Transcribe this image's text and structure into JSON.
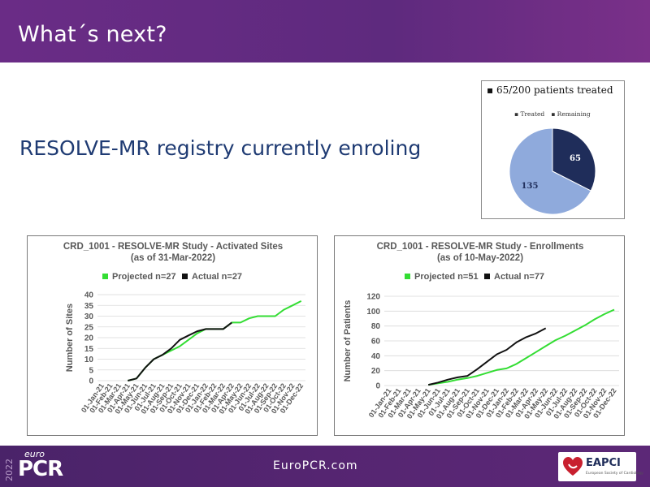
{
  "slide": {
    "title": "What´s next?",
    "subtitle": "RESOLVE-MR registry currently enroling"
  },
  "pie": {
    "title": "▪ 65/200 patients treated",
    "legend": [
      "▪ Treated",
      "▪ Remaining"
    ],
    "colors": [
      "#1f2d5a",
      "#8faadc"
    ],
    "chart_data": {
      "type": "pie",
      "labels": [
        "Treated",
        "Remaining"
      ],
      "values": [
        65,
        135
      ],
      "legend_position": "top"
    }
  },
  "charts": [
    {
      "type": "line",
      "title_line1": "CRD_1001 - RESOLVE-MR Study - Activated Sites",
      "title_line2": "(as of 31-Mar-2022)",
      "ylabel": "Number of Sites",
      "legend": [
        "Projected n=27",
        "Actual n=27"
      ],
      "colors": [
        "#33dd33",
        "#111111"
      ],
      "ylim": [
        0,
        40
      ],
      "yticks": [
        0,
        5,
        10,
        15,
        20,
        25,
        30,
        35,
        40
      ],
      "categories": [
        "01-Jan-21",
        "01-Feb-21",
        "01-Mar-21",
        "01-Apr-21",
        "01-May-21",
        "01-Jun-21",
        "01-Jul-21",
        "01-Aug-21",
        "01-Sep-21",
        "01-Oct-21",
        "01-Nov-21",
        "01-Dec-21",
        "01-Jan-22",
        "01-Feb-22",
        "01-Mar-22",
        "01-Apr-22",
        "01-May-22",
        "01-Jun-22",
        "01-Jul-22",
        "01-Aug-22",
        "01-Sep-22",
        "01-Oct-22",
        "01-Nov-22",
        "01-Dec-22"
      ],
      "series": [
        {
          "name": "Projected n=27",
          "values": [
            null,
            null,
            null,
            0,
            1,
            6,
            10,
            12,
            14,
            16,
            19,
            22,
            24,
            24,
            24,
            27,
            27,
            29,
            30,
            30,
            30,
            33,
            35,
            37
          ]
        },
        {
          "name": "Actual n=27",
          "values": [
            null,
            null,
            null,
            0,
            1,
            6,
            10,
            12,
            15,
            19,
            21,
            23,
            24,
            24,
            24,
            27,
            null,
            null,
            null,
            null,
            null,
            null,
            null,
            null
          ]
        }
      ]
    },
    {
      "type": "line",
      "title_line1": "CRD_1001 - RESOLVE-MR Study - Enrollments",
      "title_line2": "(as of 10-May-2022)",
      "ylabel": "Number of Patients",
      "legend": [
        "Projected n=51",
        "Actual n=77"
      ],
      "colors": [
        "#33dd33",
        "#111111"
      ],
      "ylim": [
        0,
        120
      ],
      "yticks": [
        0,
        20,
        40,
        60,
        80,
        100,
        120
      ],
      "categories": [
        "01-Jan-21",
        "01-Feb-21",
        "01-Mar-21",
        "01-Apr-21",
        "01-May-21",
        "01-Jun-21",
        "01-Jul-21",
        "01-Aug-21",
        "01-Sep-21",
        "01-Oct-21",
        "01-Nov-21",
        "01-Dec-21",
        "01-Jan-22",
        "01-Feb-22",
        "01-Mar-22",
        "01-Apr-22",
        "01-May-22",
        "01-Jun-22",
        "01-Jul-22",
        "01-Aug-22",
        "01-Sep-22",
        "01-Oct-22",
        "01-Nov-22",
        "01-Dec-22"
      ],
      "series": [
        {
          "name": "Projected n=51",
          "values": [
            null,
            null,
            null,
            null,
            1,
            3,
            5,
            8,
            10,
            13,
            17,
            21,
            23,
            29,
            37,
            45,
            53,
            61,
            67,
            74,
            81,
            89,
            96,
            102
          ]
        },
        {
          "name": "Actual n=77",
          "values": [
            null,
            null,
            null,
            null,
            1,
            4,
            8,
            11,
            13,
            22,
            32,
            42,
            48,
            58,
            65,
            70,
            77,
            null,
            null,
            null,
            null,
            null,
            null,
            null
          ]
        }
      ]
    }
  ],
  "footer": {
    "year": "2022",
    "logo_small": "euro",
    "logo_big": "PCR",
    "url": "EuroPCR.com",
    "eapci": "EAPCI",
    "eapci_sub": "European Society of Cardiology"
  }
}
